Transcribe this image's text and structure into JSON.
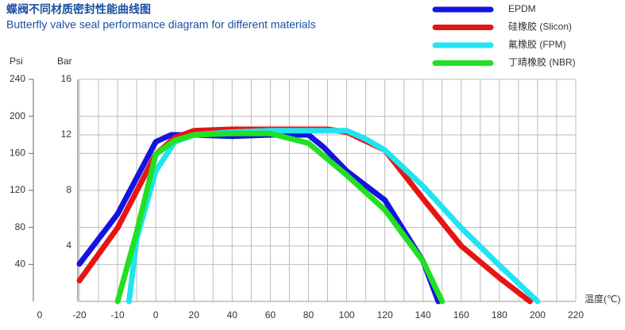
{
  "chart_data": {
    "type": "line",
    "title": "蝶阀不同材质密封性能曲线图",
    "subtitle": "Butterfly valve seal performance diagram for different materials",
    "y_label": "Bar",
    "y2_label": "Psi",
    "x_label": "温度(℃)",
    "origin_label": 0,
    "xticks": [
      -20,
      -10,
      0,
      20,
      40,
      60,
      80,
      100,
      120,
      140,
      160,
      180,
      200,
      220
    ],
    "xlim": [
      -20,
      220
    ],
    "ylim": [
      0,
      16
    ],
    "yticks": [
      4,
      8,
      12,
      16
    ],
    "y2lim": [
      0,
      240
    ],
    "y2ticks": [
      40,
      80,
      120,
      160,
      200,
      240
    ],
    "grid": true,
    "legend": "top-right",
    "series": [
      {
        "name": "EPDM",
        "color": "#1414e0",
        "x": [
          -20,
          -10,
          0,
          8,
          20,
          40,
          60,
          80,
          88,
          100,
          120,
          140,
          148
        ],
        "values": [
          2.7,
          6.3,
          11.5,
          12.0,
          12.0,
          11.9,
          12.0,
          12.0,
          11.1,
          9.4,
          7.3,
          2.9,
          0
        ]
      },
      {
        "name": "硅橡胶 (Slicon)",
        "color": "#e81414",
        "x": [
          -20,
          -10,
          0,
          10,
          20,
          40,
          60,
          80,
          90,
          100,
          120,
          140,
          160,
          180,
          196
        ],
        "values": [
          1.5,
          5.3,
          10.6,
          11.8,
          12.3,
          12.4,
          12.4,
          12.4,
          12.4,
          12.2,
          10.9,
          7.4,
          4.0,
          1.7,
          0
        ]
      },
      {
        "name": "氟橡胶 (FPM)",
        "color": "#20e4f0",
        "x": [
          -7,
          -5,
          0,
          10,
          20,
          40,
          60,
          80,
          100,
          110,
          120,
          140,
          160,
          180,
          200
        ],
        "values": [
          0,
          4.5,
          9.4,
          11.5,
          12.0,
          12.2,
          12.3,
          12.3,
          12.3,
          11.7,
          10.9,
          8.3,
          5.3,
          2.6,
          0
        ]
      },
      {
        "name": "丁晴橡胶 (NBR)",
        "color": "#22e022",
        "x": [
          -10,
          -5,
          0,
          10,
          20,
          40,
          60,
          80,
          100,
          120,
          140,
          150
        ],
        "values": [
          0,
          5.0,
          10.6,
          11.6,
          12.0,
          12.1,
          12.1,
          11.4,
          9.1,
          6.6,
          2.9,
          0
        ]
      }
    ]
  }
}
